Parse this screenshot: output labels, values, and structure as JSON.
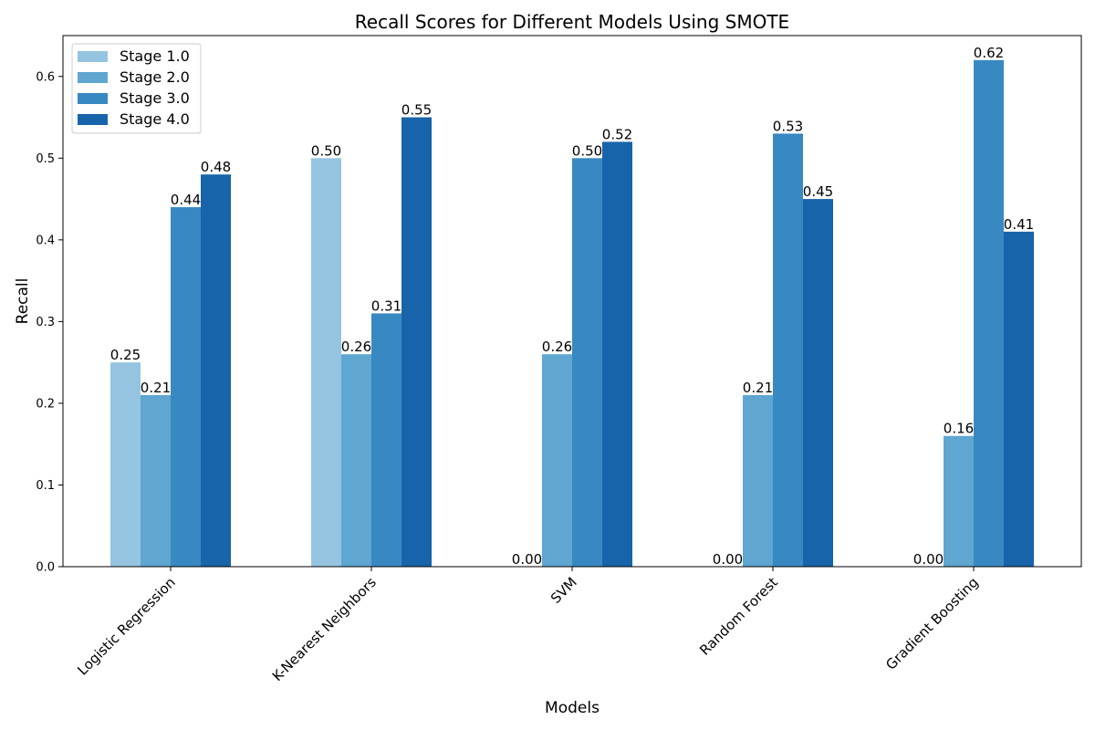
{
  "chart_data": {
    "type": "bar",
    "title": "Recall Scores for Different Models Using SMOTE",
    "xlabel": "Models",
    "ylabel": "Recall",
    "categories": [
      "Logistic Regression",
      "K-Nearest Neighbors",
      "SVM",
      "Random Forest",
      "Gradient Boosting"
    ],
    "series": [
      {
        "name": "Stage 1.0",
        "color": "#95c4e0",
        "values": [
          0.25,
          0.5,
          0.0,
          0.0,
          0.0
        ]
      },
      {
        "name": "Stage 2.0",
        "color": "#5fa6d1",
        "values": [
          0.21,
          0.26,
          0.26,
          0.21,
          0.16
        ]
      },
      {
        "name": "Stage 3.0",
        "color": "#3888c2",
        "values": [
          0.44,
          0.31,
          0.5,
          0.53,
          0.62
        ]
      },
      {
        "name": "Stage 4.0",
        "color": "#1764aa",
        "values": [
          0.48,
          0.55,
          0.52,
          0.45,
          0.41
        ]
      }
    ],
    "ylim": [
      0,
      0.65
    ],
    "yticks": [
      "0.0",
      "0.1",
      "0.2",
      "0.3",
      "0.4",
      "0.5",
      "0.6"
    ],
    "legend_position": "top-left",
    "grid": false
  }
}
